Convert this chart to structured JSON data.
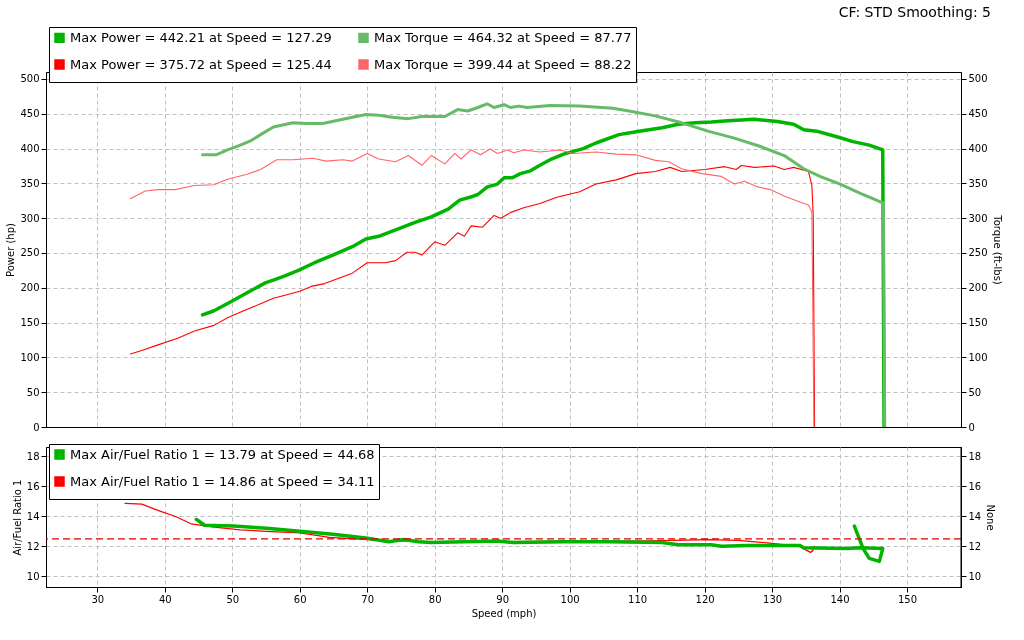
{
  "chart_data": [
    {
      "type": "line",
      "ylabel": "Power (hp)",
      "y2label": "Torque (ft-lbs)",
      "annotations": [
        "CF: STD Smoothing: 5"
      ],
      "xlim": [
        22.4,
        158
      ],
      "xticks": [
        30,
        40,
        50,
        60,
        70,
        80,
        90,
        100,
        110,
        120,
        130,
        140,
        150
      ],
      "ylim": [
        0,
        510
      ],
      "yticks": [
        0,
        50,
        100,
        150,
        200,
        250,
        300,
        350,
        400,
        450,
        500
      ],
      "y2lim": [
        0,
        510
      ],
      "y2ticks": [
        0,
        50,
        100,
        150,
        200,
        250,
        300,
        350,
        400,
        450,
        500
      ],
      "grid": true,
      "legend": "top left",
      "tick_labels": "y",
      "line_style": "solid",
      "series": [
        {
          "name": "Max Power = 442.21 at Speed = 127.29",
          "color": "#00b400",
          "x": [
            45.6,
            47.3,
            49.8,
            52.2,
            54.9,
            56.4,
            57.8,
            59.8,
            62.2,
            64.9,
            67.8,
            69.8,
            71.7,
            74.7,
            77.1,
            79.5,
            82.0,
            83.7,
            85.2,
            86.4,
            87.8,
            89.3,
            90.3,
            91.5,
            92.7,
            94.2,
            95.4,
            97.3,
            99.1,
            102.0,
            103.9,
            107.3,
            110.3,
            113.7,
            116.1,
            118.6,
            121.0,
            123.5,
            127.29,
            130.8,
            133.2,
            134.7,
            136.6,
            139.6,
            142.0,
            144.4,
            145.9,
            146.4,
            146.6
          ],
          "values": [
            161,
            167,
            180,
            193,
            207,
            212,
            217,
            225,
            236,
            247,
            259,
            270,
            274,
            285,
            294,
            302,
            313,
            326,
            330,
            334,
            345,
            349,
            358,
            358,
            364,
            368,
            375,
            385,
            392,
            400,
            408,
            420,
            425,
            430,
            435,
            437,
            438,
            440,
            442.21,
            439,
            435,
            427,
            425,
            417,
            410,
            405,
            400,
            398,
            0
          ]
        },
        {
          "name": "Max Torque = 464.32 at Speed = 87.77",
          "color": "#66bb66",
          "axis": "y2",
          "x": [
            45.6,
            47.6,
            49.3,
            51.2,
            52.7,
            54.2,
            56.1,
            59.0,
            61.0,
            63.4,
            66.4,
            67.8,
            69.8,
            71.7,
            73.7,
            76.1,
            78.1,
            81.5,
            83.4,
            84.9,
            86.4,
            87.77,
            88.8,
            90.3,
            91.2,
            92.5,
            93.7,
            97.1,
            101.5,
            106.4,
            108.8,
            112.7,
            116.6,
            120.5,
            124.4,
            128.3,
            131.8,
            134.7,
            137.1,
            140.1,
            143.0,
            145.9,
            146.5,
            146.7
          ],
          "values": [
            391,
            391,
            398,
            405,
            411,
            420,
            431,
            437,
            436,
            436,
            442,
            445,
            449,
            448,
            445,
            443,
            446,
            446,
            456,
            454,
            459,
            464.32,
            459,
            463,
            459,
            461,
            459,
            462,
            461,
            458,
            454,
            447,
            437,
            425,
            415,
            403,
            390,
            371,
            360,
            349,
            336,
            324,
            322,
            0
          ]
        },
        {
          "name": "Max Power = 375.72 at Speed = 125.44",
          "color": "#ff0000",
          "x": [
            34.9,
            36.6,
            39.0,
            42.0,
            44.4,
            47.3,
            49.3,
            51.7,
            54.2,
            56.1,
            58.1,
            60.0,
            61.7,
            63.7,
            67.8,
            70.0,
            72.7,
            74.2,
            75.9,
            77.1,
            78.1,
            80.0,
            81.5,
            83.4,
            84.4,
            85.4,
            87.1,
            88.8,
            89.8,
            91.2,
            93.2,
            95.6,
            98.1,
            101.5,
            103.9,
            106.9,
            109.8,
            112.7,
            114.9,
            116.6,
            120.0,
            123.0,
            124.7,
            125.44,
            127.4,
            130.3,
            131.8,
            133.2,
            135.4,
            135.9,
            136.1,
            136.3
          ],
          "values": [
            105,
            110,
            118,
            128,
            138,
            146,
            157,
            167,
            177,
            185,
            190,
            195,
            202,
            206,
            221,
            236,
            236,
            239,
            251,
            251,
            247,
            266,
            261,
            279,
            274,
            289,
            287,
            304,
            300,
            308,
            315,
            321,
            330,
            338,
            349,
            355,
            364,
            367,
            373,
            367,
            370,
            374,
            370,
            375.72,
            373,
            375,
            370,
            373,
            367,
            347,
            304,
            0
          ]
        },
        {
          "name": "Max Torque = 399.44 at Speed = 88.22",
          "color": "#ff6666",
          "axis": "y2",
          "x": [
            34.9,
            37.1,
            39.0,
            41.5,
            44.4,
            47.3,
            49.3,
            52.2,
            54.2,
            56.6,
            59.0,
            62.0,
            63.9,
            66.4,
            67.8,
            70.0,
            71.7,
            74.2,
            76.1,
            78.1,
            79.5,
            81.5,
            83.0,
            83.9,
            85.4,
            86.8,
            88.22,
            89.3,
            90.8,
            91.7,
            93.2,
            95.6,
            98.6,
            100.5,
            103.9,
            106.9,
            109.8,
            112.7,
            114.7,
            116.6,
            119.6,
            122.5,
            124.4,
            125.9,
            127.8,
            129.8,
            131.8,
            134.2,
            135.4,
            135.9,
            136.2
          ],
          "values": [
            328,
            339,
            341,
            341,
            347,
            348,
            356,
            363,
            370,
            384,
            384,
            386,
            382,
            384,
            382,
            393,
            385,
            381,
            390,
            376,
            390,
            378,
            393,
            385,
            398,
            391,
            399.44,
            393,
            398,
            394,
            398,
            395,
            398,
            393,
            395,
            392,
            391,
            383,
            381,
            371,
            364,
            360,
            349,
            353,
            345,
            341,
            332,
            323,
            319,
            309,
            0
          ]
        }
      ]
    },
    {
      "type": "line",
      "xlabel": "Speed (mph)",
      "ylabel": "Air/Fuel Ratio 1",
      "y2label": "None",
      "xlim": [
        22.4,
        158
      ],
      "xticks": [
        30,
        40,
        50,
        60,
        70,
        80,
        90,
        100,
        110,
        120,
        130,
        140,
        150
      ],
      "ylim": [
        9.3,
        18.6
      ],
      "yticks": [
        10,
        12,
        14,
        16,
        18
      ],
      "y2lim": [
        9.3,
        18.6
      ],
      "y2ticks": [
        10,
        12,
        14,
        16,
        18
      ],
      "grid": true,
      "legend": "top left",
      "line_style": "solid",
      "ref_lines": [
        {
          "axis": "y",
          "value": 12.5,
          "color": "#e00000",
          "line_style": "dashed"
        }
      ],
      "series": [
        {
          "name": "Max Air/Fuel Ratio 1 = 13.79 at Speed = 44.68",
          "color": "#00b400",
          "x": [
            44.68,
            45.9,
            50.2,
            55.1,
            60.0,
            64.9,
            69.8,
            73.2,
            75.4,
            77.6,
            79.5,
            84.4,
            89.3,
            91.7,
            99.1,
            106.0,
            113.7,
            116.1,
            121.0,
            122.5,
            126.4,
            134.2,
            134.7,
            141.0,
            143.0,
            146.4,
            145.9,
            144.4,
            143.5,
            142.2
          ],
          "values": [
            13.79,
            13.4,
            13.35,
            13.2,
            13.0,
            12.8,
            12.55,
            12.3,
            12.45,
            12.3,
            12.25,
            12.3,
            12.35,
            12.25,
            12.3,
            12.3,
            12.25,
            12.1,
            12.1,
            12.0,
            12.05,
            12.05,
            11.9,
            11.85,
            11.9,
            11.85,
            11.0,
            11.2,
            11.85,
            13.35
          ]
        },
        {
          "name": "Max Air/Fuel Ratio 1 = 14.86 at Speed = 34.11",
          "color": "#ff0000",
          "x": [
            34.11,
            36.6,
            39.5,
            41.5,
            43.9,
            47.0,
            51.2,
            55.0,
            60.0,
            64.4,
            68.0,
            72.0,
            80.0,
            90.0,
            100.0,
            110.0,
            120.5,
            125.0,
            130.0,
            134.0,
            135.7,
            136.0,
            136.3
          ],
          "values": [
            14.86,
            14.8,
            14.3,
            14.0,
            13.5,
            13.3,
            13.1,
            13.0,
            12.9,
            12.6,
            12.5,
            12.4,
            12.3,
            12.3,
            12.35,
            12.35,
            12.45,
            12.4,
            12.2,
            12.0,
            11.6,
            11.7,
            12.0
          ]
        }
      ]
    }
  ]
}
